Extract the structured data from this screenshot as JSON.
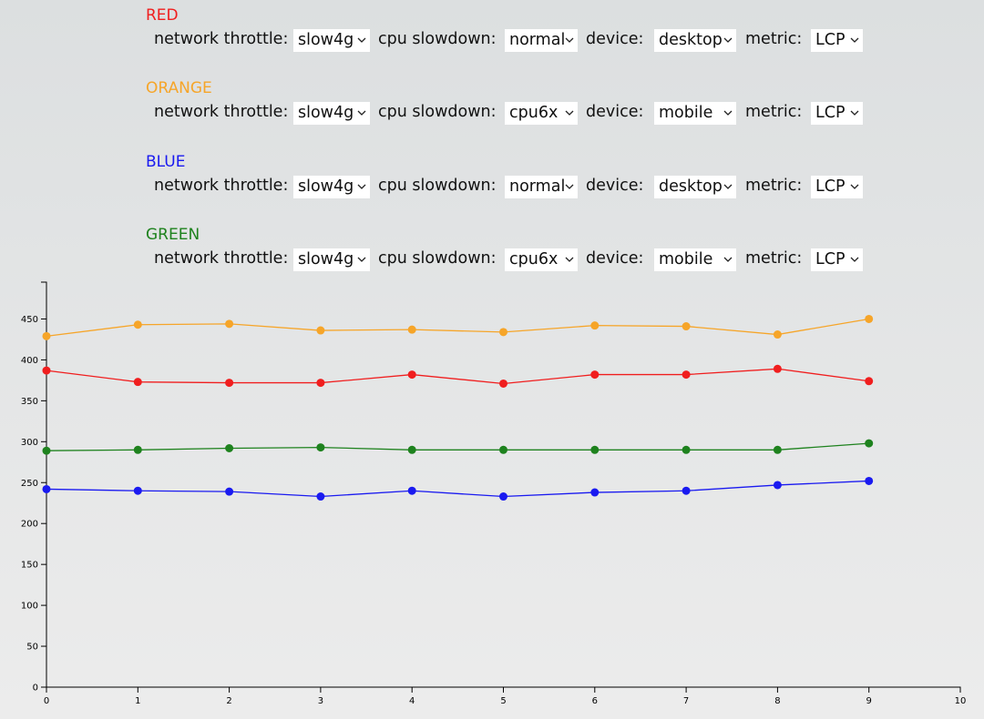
{
  "panels": [
    {
      "fields": [
        {
          "label": "network throttle:",
          "value": "slow4g"
        },
        {
          "label": "cpu slowdown:",
          "value": "normal"
        },
        {
          "label": "device:",
          "value": "desktop"
        },
        {
          "label": "metric:",
          "value": "LCP"
        }
      ]
    },
    {
      "fields": [
        {
          "label": "network throttle:",
          "value": "slow4g"
        },
        {
          "label": "cpu slowdown:",
          "value": "cpu6x"
        },
        {
          "label": "device:",
          "value": "mobile"
        },
        {
          "label": "metric:",
          "value": "LCP"
        }
      ]
    },
    {
      "fields": [
        {
          "label": "network throttle:",
          "value": "slow4g"
        },
        {
          "label": "cpu slowdown:",
          "value": "normal"
        },
        {
          "label": "device:",
          "value": "desktop"
        },
        {
          "label": "metric:",
          "value": "LCP"
        }
      ]
    },
    {
      "fields": [
        {
          "label": "network throttle:",
          "value": "slow4g"
        },
        {
          "label": "cpu slowdown:",
          "value": "cpu6x"
        },
        {
          "label": "device:",
          "value": "mobile"
        },
        {
          "label": "metric:",
          "value": "LCP"
        }
      ]
    }
  ],
  "chart_data": {
    "type": "line",
    "x": [
      0,
      1,
      2,
      3,
      4,
      5,
      6,
      7,
      8,
      9
    ],
    "series": [
      {
        "name": "RED",
        "color": "#f01e1e",
        "values": [
          387,
          373,
          372,
          372,
          382,
          371,
          382,
          382,
          389,
          374
        ]
      },
      {
        "name": "ORANGE",
        "color": "#f6a529",
        "values": [
          429,
          443,
          444,
          436,
          437,
          434,
          442,
          441,
          431,
          450
        ]
      },
      {
        "name": "BLUE",
        "color": "#1a1af0",
        "values": [
          242,
          240,
          239,
          233,
          240,
          233,
          238,
          240,
          247,
          252
        ]
      },
      {
        "name": "GREEN",
        "color": "#1e821e",
        "values": [
          289,
          290,
          292,
          293,
          290,
          290,
          290,
          290,
          290,
          298
        ]
      }
    ],
    "xlim": [
      0,
      10
    ],
    "xticks": [
      0,
      1,
      2,
      3,
      4,
      5,
      6,
      7,
      8,
      9,
      10
    ],
    "ylim": [
      0,
      495
    ],
    "yticks": [
      0,
      50,
      100,
      150,
      200,
      250,
      300,
      350,
      400,
      450
    ]
  }
}
